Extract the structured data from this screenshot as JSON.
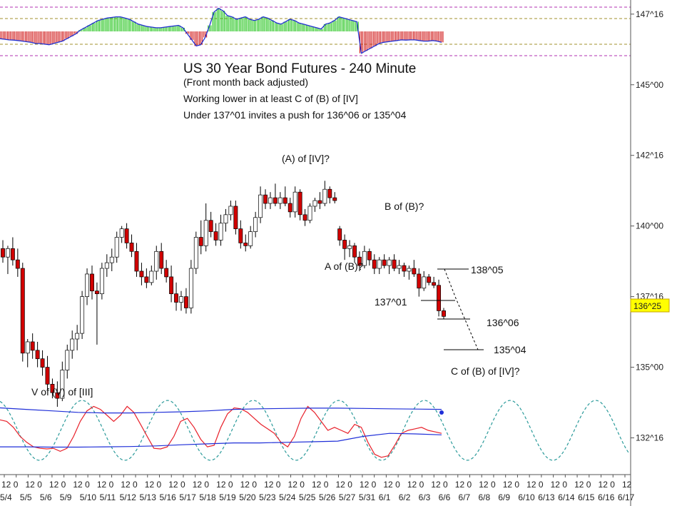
{
  "chart_data": {
    "type": "candlestick",
    "title": "US 30 Year Bond Futures - 240 Minute",
    "subtitle": "(Front month back adjusted)",
    "notes": [
      "Working lower in at least C of (B) of [IV]",
      "Under 137^01 invites a push for 136^06 or 135^04"
    ],
    "y_axis": {
      "ticks": [
        {
          "label": "147^16",
          "value": 147.5
        },
        {
          "label": "145^00",
          "value": 145.0
        },
        {
          "label": "142^16",
          "value": 142.5
        },
        {
          "label": "140^00",
          "value": 140.0
        },
        {
          "label": "137^16",
          "value": 137.5
        },
        {
          "label": "135^00",
          "value": 135.0
        },
        {
          "label": "132^16",
          "value": 132.5
        }
      ],
      "ylim": [
        131.2,
        148.0
      ],
      "last_price": {
        "label": "136^25",
        "value": 136.78,
        "color": "#ffff00"
      }
    },
    "x_axis": {
      "hour_labels": [
        "12",
        "0",
        "12",
        "0",
        "12",
        "0",
        "12",
        "0",
        "12",
        "0",
        "12",
        "0",
        "12",
        "0",
        "12",
        "0",
        "12",
        "0",
        "12",
        "0",
        "12",
        "0",
        "12",
        "0",
        "12",
        "0",
        "12",
        "0",
        "12",
        "0",
        "12",
        "0",
        "12",
        "0",
        "12",
        "0",
        "12",
        "0",
        "12",
        "0",
        "12",
        "0",
        "12",
        "0",
        "12",
        "0",
        "12",
        "0",
        "12",
        "0",
        "12",
        "0",
        "12"
      ],
      "date_labels": [
        "5/4",
        "5/5",
        "5/6",
        "5/9",
        "5/10",
        "5/11",
        "5/12",
        "5/13",
        "5/16",
        "5/17",
        "5/18",
        "5/19",
        "5/20",
        "5/23",
        "5/24",
        "5/25",
        "5/26",
        "5/27",
        "5/31",
        "6/1",
        "6/2",
        "6/3",
        "6/6",
        "6/7",
        "6/8",
        "6/9",
        "6/10",
        "6/13",
        "6/14",
        "6/15",
        "6/16",
        "6/17"
      ]
    },
    "levels": [
      {
        "label": "138^05",
        "value": 138.15
      },
      {
        "label": "137^01",
        "value": 137.03
      },
      {
        "label": "136^06",
        "value": 136.19
      },
      {
        "label": "135^04",
        "value": 135.12
      }
    ],
    "wave_labels": [
      "(A) of [IV]?",
      "B of (B)?",
      "A of (B)?",
      "C of (B) of [IV]?",
      "V of (V) of [III]"
    ],
    "candles": [
      {
        "o": 139.2,
        "h": 139.5,
        "l": 138.7,
        "c": 138.9
      },
      {
        "o": 138.9,
        "h": 139.3,
        "l": 138.3,
        "c": 139.2
      },
      {
        "o": 139.2,
        "h": 139.6,
        "l": 138.6,
        "c": 138.8
      },
      {
        "o": 138.8,
        "h": 139.2,
        "l": 138.2,
        "c": 138.5
      },
      {
        "o": 138.5,
        "h": 138.7,
        "l": 135.2,
        "c": 135.5
      },
      {
        "o": 135.5,
        "h": 136.0,
        "l": 135.0,
        "c": 135.9
      },
      {
        "o": 135.9,
        "h": 136.2,
        "l": 135.3,
        "c": 135.6
      },
      {
        "o": 135.6,
        "h": 135.9,
        "l": 135.0,
        "c": 135.3
      },
      {
        "o": 135.3,
        "h": 135.6,
        "l": 134.7,
        "c": 135.0
      },
      {
        "o": 135.0,
        "h": 135.4,
        "l": 134.2,
        "c": 134.4
      },
      {
        "o": 134.4,
        "h": 134.6,
        "l": 133.9,
        "c": 134.1
      },
      {
        "o": 134.1,
        "h": 134.5,
        "l": 133.6,
        "c": 133.9
      },
      {
        "o": 133.9,
        "h": 135.2,
        "l": 133.8,
        "c": 134.9
      },
      {
        "o": 134.9,
        "h": 135.8,
        "l": 134.6,
        "c": 135.6
      },
      {
        "o": 135.6,
        "h": 136.3,
        "l": 135.3,
        "c": 136.0
      },
      {
        "o": 136.0,
        "h": 136.5,
        "l": 135.6,
        "c": 136.2
      },
      {
        "o": 136.2,
        "h": 137.7,
        "l": 136.0,
        "c": 137.5
      },
      {
        "o": 137.5,
        "h": 138.5,
        "l": 137.2,
        "c": 138.3
      },
      {
        "o": 138.3,
        "h": 138.6,
        "l": 137.4,
        "c": 137.7
      },
      {
        "o": 137.7,
        "h": 138.0,
        "l": 135.8,
        "c": 137.6
      },
      {
        "o": 137.6,
        "h": 138.7,
        "l": 137.4,
        "c": 138.5
      },
      {
        "o": 138.5,
        "h": 139.0,
        "l": 138.2,
        "c": 138.7
      },
      {
        "o": 138.7,
        "h": 139.2,
        "l": 138.4,
        "c": 138.9
      },
      {
        "o": 138.9,
        "h": 139.8,
        "l": 138.7,
        "c": 139.6
      },
      {
        "o": 139.6,
        "h": 140.0,
        "l": 139.4,
        "c": 139.9
      },
      {
        "o": 139.9,
        "h": 140.1,
        "l": 139.2,
        "c": 139.4
      },
      {
        "o": 139.4,
        "h": 139.7,
        "l": 138.9,
        "c": 139.1
      },
      {
        "o": 139.1,
        "h": 139.4,
        "l": 138.2,
        "c": 138.4
      },
      {
        "o": 138.4,
        "h": 138.7,
        "l": 137.9,
        "c": 138.2
      },
      {
        "o": 138.2,
        "h": 138.5,
        "l": 137.8,
        "c": 138.0
      },
      {
        "o": 138.0,
        "h": 138.6,
        "l": 137.9,
        "c": 138.4
      },
      {
        "o": 138.4,
        "h": 139.3,
        "l": 138.1,
        "c": 139.1
      },
      {
        "o": 139.1,
        "h": 139.4,
        "l": 138.3,
        "c": 138.5
      },
      {
        "o": 138.5,
        "h": 138.8,
        "l": 138.0,
        "c": 138.2
      },
      {
        "o": 138.2,
        "h": 138.6,
        "l": 137.3,
        "c": 137.6
      },
      {
        "o": 137.6,
        "h": 138.0,
        "l": 137.0,
        "c": 137.3
      },
      {
        "o": 137.3,
        "h": 137.7,
        "l": 137.0,
        "c": 137.5
      },
      {
        "o": 137.5,
        "h": 137.8,
        "l": 136.9,
        "c": 137.1
      },
      {
        "o": 137.1,
        "h": 138.8,
        "l": 136.9,
        "c": 138.5
      },
      {
        "o": 138.5,
        "h": 139.8,
        "l": 138.3,
        "c": 139.6
      },
      {
        "o": 139.6,
        "h": 140.2,
        "l": 139.0,
        "c": 139.3
      },
      {
        "o": 139.3,
        "h": 140.8,
        "l": 139.1,
        "c": 140.2
      },
      {
        "o": 140.2,
        "h": 140.5,
        "l": 139.6,
        "c": 139.8
      },
      {
        "o": 139.8,
        "h": 140.1,
        "l": 139.3,
        "c": 139.5
      },
      {
        "o": 139.5,
        "h": 140.4,
        "l": 139.3,
        "c": 140.1
      },
      {
        "o": 140.1,
        "h": 140.6,
        "l": 139.8,
        "c": 140.4
      },
      {
        "o": 140.4,
        "h": 140.9,
        "l": 140.2,
        "c": 140.7
      },
      {
        "o": 140.7,
        "h": 140.9,
        "l": 139.7,
        "c": 139.9
      },
      {
        "o": 139.9,
        "h": 140.2,
        "l": 139.2,
        "c": 139.4
      },
      {
        "o": 139.4,
        "h": 139.7,
        "l": 139.1,
        "c": 139.3
      },
      {
        "o": 139.3,
        "h": 140.0,
        "l": 139.2,
        "c": 139.8
      },
      {
        "o": 139.8,
        "h": 140.5,
        "l": 139.6,
        "c": 140.3
      },
      {
        "o": 140.3,
        "h": 141.4,
        "l": 140.1,
        "c": 141.1
      },
      {
        "o": 141.1,
        "h": 141.3,
        "l": 140.6,
        "c": 140.8
      },
      {
        "o": 140.8,
        "h": 141.2,
        "l": 140.6,
        "c": 141.0
      },
      {
        "o": 141.0,
        "h": 141.5,
        "l": 140.7,
        "c": 140.8
      },
      {
        "o": 140.8,
        "h": 141.2,
        "l": 140.6,
        "c": 141.0
      },
      {
        "o": 141.0,
        "h": 141.4,
        "l": 140.7,
        "c": 140.8
      },
      {
        "o": 140.8,
        "h": 141.0,
        "l": 140.3,
        "c": 140.5
      },
      {
        "o": 140.5,
        "h": 141.4,
        "l": 140.3,
        "c": 141.2
      },
      {
        "o": 141.2,
        "h": 141.3,
        "l": 140.2,
        "c": 140.4
      },
      {
        "o": 140.4,
        "h": 140.6,
        "l": 140.0,
        "c": 140.2
      },
      {
        "o": 140.2,
        "h": 140.8,
        "l": 140.1,
        "c": 140.7
      },
      {
        "o": 140.7,
        "h": 141.0,
        "l": 140.5,
        "c": 140.9
      },
      {
        "o": 140.9,
        "h": 141.2,
        "l": 140.6,
        "c": 140.8
      },
      {
        "o": 140.8,
        "h": 141.6,
        "l": 140.7,
        "c": 141.3
      },
      {
        "o": 141.3,
        "h": 141.4,
        "l": 140.8,
        "c": 141.0
      },
      {
        "o": 141.0,
        "h": 141.2,
        "l": 140.8,
        "c": 140.9
      },
      {
        "o": 139.9,
        "h": 140.0,
        "l": 139.3,
        "c": 139.5
      },
      {
        "o": 139.5,
        "h": 139.7,
        "l": 138.8,
        "c": 139.2
      },
      {
        "o": 139.2,
        "h": 139.5,
        "l": 138.9,
        "c": 139.3
      },
      {
        "o": 139.3,
        "h": 139.4,
        "l": 138.7,
        "c": 138.9
      },
      {
        "o": 138.9,
        "h": 139.1,
        "l": 138.4,
        "c": 138.6
      },
      {
        "o": 138.6,
        "h": 139.3,
        "l": 138.5,
        "c": 139.1
      },
      {
        "o": 139.1,
        "h": 139.2,
        "l": 138.6,
        "c": 138.8
      },
      {
        "o": 138.8,
        "h": 139.0,
        "l": 138.3,
        "c": 138.5
      },
      {
        "o": 138.5,
        "h": 138.9,
        "l": 138.3,
        "c": 138.8
      },
      {
        "o": 138.8,
        "h": 139.0,
        "l": 138.5,
        "c": 138.6
      },
      {
        "o": 138.6,
        "h": 138.9,
        "l": 138.3,
        "c": 138.8
      },
      {
        "o": 138.8,
        "h": 139.0,
        "l": 138.4,
        "c": 138.5
      },
      {
        "o": 138.5,
        "h": 138.8,
        "l": 138.3,
        "c": 138.6
      },
      {
        "o": 138.6,
        "h": 138.7,
        "l": 138.2,
        "c": 138.4
      },
      {
        "o": 138.4,
        "h": 138.6,
        "l": 138.1,
        "c": 138.5
      },
      {
        "o": 138.5,
        "h": 138.8,
        "l": 138.2,
        "c": 138.3
      },
      {
        "o": 138.3,
        "h": 138.5,
        "l": 137.5,
        "c": 137.8
      },
      {
        "o": 137.8,
        "h": 138.4,
        "l": 137.7,
        "c": 138.2
      },
      {
        "o": 138.2,
        "h": 138.3,
        "l": 137.9,
        "c": 138.0
      },
      {
        "o": 138.0,
        "h": 138.2,
        "l": 137.8,
        "c": 137.9
      },
      {
        "o": 137.9,
        "h": 138.1,
        "l": 136.8,
        "c": 137.0
      },
      {
        "o": 137.0,
        "h": 137.1,
        "l": 136.7,
        "c": 136.8
      }
    ],
    "top_histogram": {
      "series": [
        {
          "name": "histogram",
          "values": [
            -0.6,
            -0.65,
            -0.7,
            -0.72,
            -0.75,
            -0.8,
            -0.85,
            -0.9,
            -1.0,
            -1.0,
            -1.05,
            -1.1,
            -1.0,
            -0.9,
            -0.8,
            -0.6,
            -0.4,
            -0.2,
            0.1,
            0.3,
            0.5,
            0.7,
            0.9,
            1.0,
            1.1,
            1.15,
            1.2,
            1.2,
            1.1,
            1.0,
            0.8,
            0.6,
            0.5,
            0.4,
            0.35,
            0.3,
            0.3,
            0.35,
            0.4,
            0.45,
            0.5,
            0.3,
            -0.2,
            -0.7,
            -1.2,
            -1.1,
            -0.5,
            0.5,
            1.6,
            1.9,
            1.7,
            1.3,
            1.2,
            1.0,
            1.1,
            1.2,
            1.0,
            0.9,
            1.0,
            1.2,
            1.1,
            0.9,
            0.7,
            0.6,
            0.8,
            1.0,
            0.9,
            0.7,
            0.6,
            0.5,
            0.4,
            0.3,
            0.2,
            0.6,
            0.7,
            0.9,
            1.2,
            1.1,
            1.0,
            0.9,
            0.8,
            -1.8,
            -1.6,
            -1.4,
            -1.2,
            -1.0,
            -0.9,
            -0.85,
            -0.8,
            -0.75,
            -0.7,
            -0.72,
            -0.7,
            -0.7,
            -0.75,
            -0.8,
            -0.8,
            -0.75,
            -0.8,
            -0.9
          ]
        }
      ]
    },
    "bottom_oscillator": {
      "series": [
        {
          "name": "red",
          "color": "#e8202a",
          "values": [
            0.35,
            0.3,
            0.1,
            -0.2,
            -0.4,
            -0.55,
            -0.6,
            -0.62,
            -0.6,
            -0.7,
            -0.6,
            -0.2,
            0.3,
            0.65,
            0.8,
            0.7,
            0.5,
            0.3,
            0.5,
            0.8,
            0.6,
            0.2,
            -0.2,
            -0.6,
            -0.62,
            -0.55,
            -0.2,
            0.3,
            0.4,
            0.1,
            -0.3,
            -0.55,
            -0.5,
            0.1,
            0.55,
            0.75,
            0.72,
            0.6,
            0.4,
            0.2,
            0.05,
            -0.1,
            -0.4,
            -0.55,
            -0.2,
            0.4,
            0.8,
            0.6,
            0.3,
            0.0,
            0.1,
            0.0,
            -0.1,
            0.2,
            0.1,
            -0.4,
            -0.8,
            -0.9,
            -0.85,
            -0.5,
            -0.1,
            0.0,
            0.05,
            0.1,
            0.0,
            -0.05,
            -0.1
          ]
        },
        {
          "name": "upper-band",
          "color": "#1f2fd8",
          "values": [
            0.75,
            0.7,
            0.65,
            0.6,
            0.58,
            0.58,
            0.6,
            0.62,
            0.65,
            0.7,
            0.72,
            0.73,
            0.74,
            0.74,
            0.73,
            0.72,
            0.71,
            0.7
          ]
        },
        {
          "name": "lower-band",
          "color": "#1f2fd8",
          "values": [
            -0.55,
            -0.55,
            -0.56,
            -0.56,
            -0.55,
            -0.54,
            -0.52,
            -0.48,
            -0.45,
            -0.42,
            -0.42,
            -0.4,
            -0.38,
            -0.36,
            -0.2,
            -0.1,
            -0.12,
            -0.15
          ]
        }
      ]
    }
  }
}
